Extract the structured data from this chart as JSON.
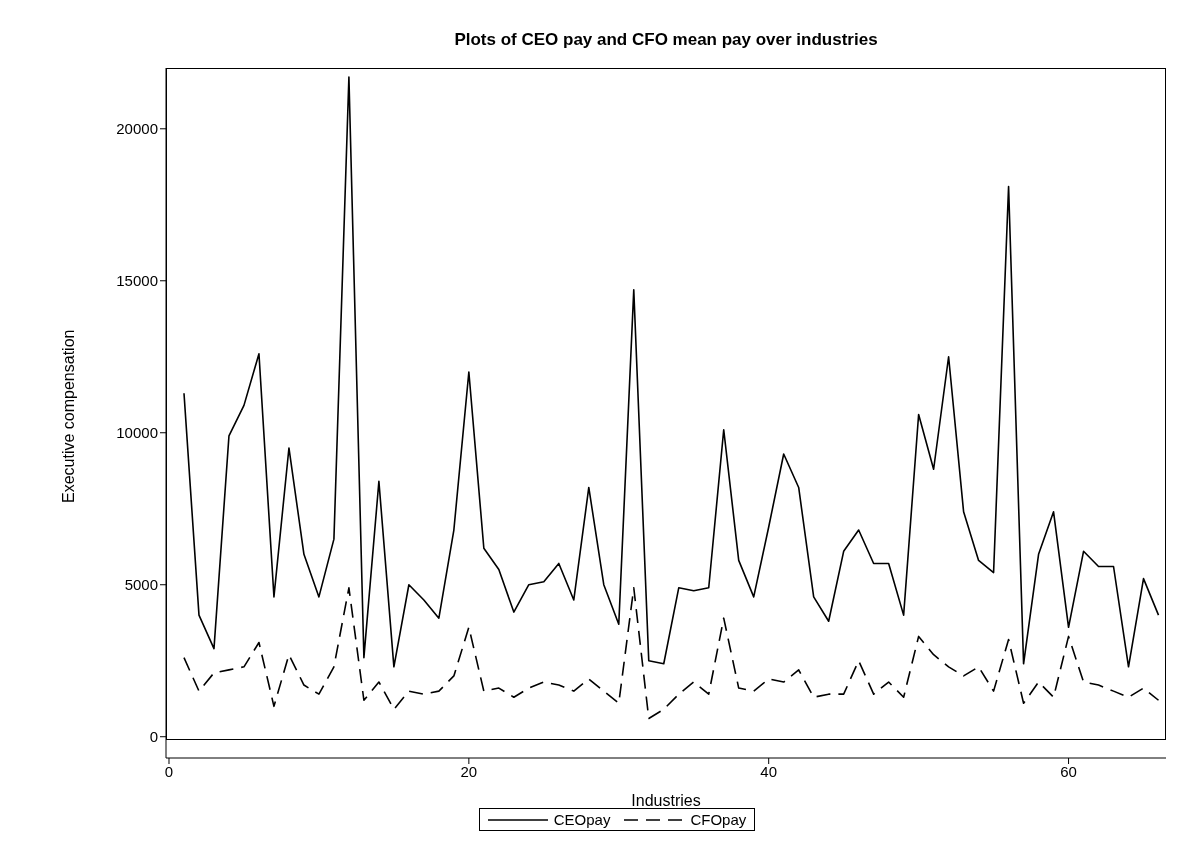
{
  "chart_data": {
    "type": "line",
    "title": "Plots of CEO pay and CFO mean pay over industries",
    "xlabel": "Industries",
    "ylabel": "Executive compensation",
    "x": [
      1,
      2,
      3,
      4,
      5,
      6,
      7,
      8,
      9,
      10,
      11,
      12,
      13,
      14,
      15,
      16,
      17,
      18,
      19,
      20,
      21,
      22,
      23,
      24,
      25,
      26,
      27,
      28,
      29,
      30,
      31,
      32,
      33,
      34,
      35,
      36,
      37,
      38,
      39,
      40,
      41,
      42,
      43,
      44,
      45,
      46,
      47,
      48,
      49,
      50,
      51,
      52,
      53,
      54,
      55,
      56,
      57,
      58,
      59,
      60,
      61,
      62,
      63,
      64,
      65,
      66
    ],
    "series": [
      {
        "name": "CEOpay",
        "color": "#000000",
        "line_style": "solid",
        "values": [
          11300,
          4000,
          2900,
          9900,
          10900,
          12600,
          4600,
          9500,
          6000,
          4600,
          6500,
          21700,
          2600,
          8400,
          2300,
          5000,
          4500,
          3900,
          6800,
          12000,
          6200,
          5500,
          4100,
          5000,
          5100,
          5700,
          4500,
          8200,
          5000,
          3700,
          14700,
          2500,
          2400,
          4900,
          4800,
          4900,
          10100,
          5800,
          4600,
          6900,
          9300,
          8200,
          4600,
          3800,
          6100,
          6800,
          5700,
          5700,
          4000,
          10600,
          8800,
          12500,
          7400,
          5800,
          5400,
          18100,
          2400,
          6000,
          7400,
          3600,
          6100,
          5600,
          5600,
          2300,
          5200,
          4000
        ]
      },
      {
        "name": "CFOpay",
        "color": "#000000",
        "line_style": "dashed",
        "values": [
          2600,
          1500,
          2100,
          2200,
          2300,
          3100,
          1000,
          2700,
          1700,
          1400,
          2300,
          4900,
          1200,
          1800,
          900,
          1500,
          1400,
          1500,
          2000,
          3600,
          1500,
          1600,
          1300,
          1600,
          1800,
          1700,
          1500,
          1900,
          1500,
          1100,
          4900,
          600,
          900,
          1400,
          1800,
          1400,
          3900,
          1600,
          1500,
          1900,
          1800,
          2200,
          1300,
          1400,
          1400,
          2500,
          1400,
          1800,
          1300,
          3300,
          2700,
          2300,
          2000,
          2300,
          1500,
          3200,
          1100,
          1800,
          1300,
          3300,
          1800,
          1700,
          1500,
          1300,
          1600,
          1200
        ]
      }
    ],
    "xlim": [
      -0.2,
      66.5
    ],
    "ylim": [
      -700,
      22000
    ],
    "xticks": [
      0,
      20,
      40,
      60
    ],
    "yticks": [
      0,
      5000,
      10000,
      15000,
      20000
    ],
    "grid": false,
    "legend": "bottom",
    "marker": "none"
  }
}
